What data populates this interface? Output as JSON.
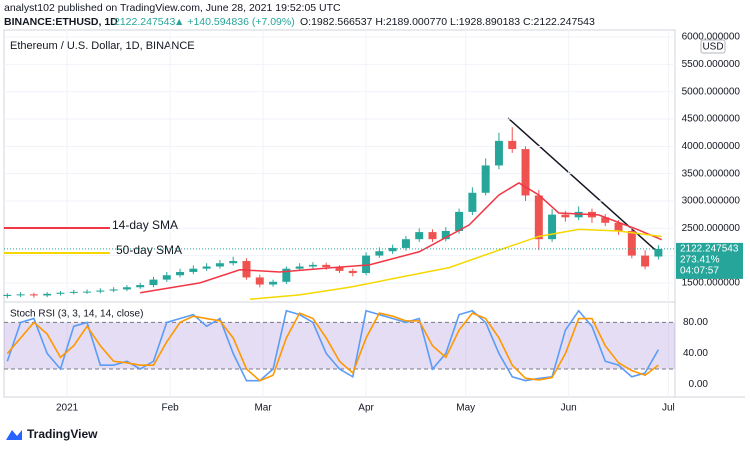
{
  "header": {
    "publisher": "analyst102 published on TradingView.com, June 28, 2021 19:52:05 UTC",
    "symbol": "BINANCE:ETHUSD, 1D",
    "price": 2122.247543,
    "change": "▲ +140.594836 (+7.09%)",
    "ohlc": "O:1982.566537 H:2189.000770 L:1928.890183 C:2122.247543"
  },
  "chart_data": [
    {
      "type": "candlestick",
      "title": "Ethereum / U.S. Dollar, 1D, BINANCE",
      "currency": "USD",
      "x": [
        1,
        5,
        9,
        13,
        17,
        21,
        25,
        29,
        33,
        37,
        41,
        45,
        49,
        53,
        57,
        61,
        65,
        69,
        73,
        77,
        81,
        85,
        89,
        93,
        97,
        101,
        105,
        109,
        113,
        117,
        121,
        125,
        129,
        133,
        137,
        141,
        145,
        149,
        153,
        157,
        161,
        165,
        169,
        173,
        177,
        181,
        185,
        189,
        193,
        197
      ],
      "open": [
        1260,
        1280,
        1290,
        1270,
        1300,
        1320,
        1335,
        1340,
        1360,
        1380,
        1420,
        1460,
        1560,
        1640,
        1700,
        1760,
        1800,
        1860,
        1900,
        1600,
        1470,
        1520,
        1760,
        1800,
        1830,
        1790,
        1720,
        1680,
        2000,
        2080,
        2140,
        2300,
        2430,
        2300,
        2450,
        2800,
        3150,
        3650,
        4100,
        3950,
        3100,
        2300,
        2750,
        2700,
        2800,
        2700,
        2600,
        2450,
        2000,
        1982.566537
      ],
      "high": [
        1310,
        1330,
        1320,
        1330,
        1350,
        1370,
        1380,
        1400,
        1420,
        1460,
        1500,
        1610,
        1700,
        1760,
        1820,
        1860,
        1920,
        1980,
        1950,
        1650,
        1560,
        1800,
        1860,
        1880,
        1870,
        1820,
        1760,
        2060,
        2150,
        2200,
        2360,
        2500,
        2480,
        2520,
        2860,
        3250,
        3780,
        4250,
        4350,
        4000,
        3200,
        2850,
        2820,
        2900,
        2860,
        2760,
        2650,
        2500,
        2100,
        2189.00077
      ],
      "low": [
        1220,
        1240,
        1230,
        1240,
        1270,
        1290,
        1300,
        1310,
        1330,
        1350,
        1390,
        1420,
        1520,
        1600,
        1660,
        1720,
        1760,
        1820,
        1560,
        1420,
        1430,
        1480,
        1720,
        1760,
        1740,
        1680,
        1620,
        1640,
        1960,
        2030,
        2090,
        2250,
        2250,
        2260,
        2400,
        2740,
        3100,
        3580,
        3880,
        3000,
        2100,
        2250,
        2620,
        2650,
        2600,
        2540,
        2380,
        1950,
        1750,
        1928.890183
      ],
      "close": [
        1280,
        1290,
        1270,
        1300,
        1320,
        1335,
        1340,
        1360,
        1380,
        1420,
        1460,
        1560,
        1640,
        1700,
        1760,
        1800,
        1860,
        1900,
        1600,
        1470,
        1520,
        1760,
        1800,
        1830,
        1790,
        1720,
        1680,
        2000,
        2080,
        2140,
        2300,
        2430,
        2300,
        2450,
        2800,
        3150,
        3650,
        4100,
        3950,
        3100,
        2300,
        2750,
        2700,
        2800,
        2700,
        2600,
        2450,
        2000,
        1800,
        2122.247543
      ],
      "colors": {
        "up": "#26a69a",
        "down": "#ef5350"
      },
      "xlim": [
        0,
        202
      ],
      "ylim": [
        1150,
        6130
      ],
      "yticks": [
        {
          "value": 1500,
          "label": "1500.000000"
        },
        {
          "value": 2000,
          "label": "2000.000000"
        },
        {
          "value": 2500,
          "label": "2500.000000"
        },
        {
          "value": 3000,
          "label": "3000.000000"
        },
        {
          "value": 3500,
          "label": "3500.000000"
        },
        {
          "value": 4000,
          "label": "4000.000000"
        },
        {
          "value": 4500,
          "label": "4500.000000"
        },
        {
          "value": 5000,
          "label": "5000.000000"
        },
        {
          "value": 5500,
          "label": "5500.000000"
        },
        {
          "value": 6000,
          "label": "6000.000000"
        }
      ],
      "overlays": [
        {
          "name": "14-day SMA",
          "color": "#f23645",
          "x": [
            41,
            59,
            71,
            83,
            98,
            110,
            125,
            140,
            149,
            155,
            161,
            167,
            179,
            191,
            198
          ],
          "values": [
            1320,
            1500,
            1740,
            1700,
            1775,
            1830,
            2070,
            2560,
            3110,
            3330,
            3110,
            2780,
            2745,
            2470,
            2290
          ]
        },
        {
          "name": "50-day SMA",
          "color": "#f5d800",
          "x": [
            74,
            89,
            104,
            119,
            134,
            149,
            161,
            173,
            185,
            198
          ],
          "values": [
            1200,
            1280,
            1420,
            1600,
            1780,
            2100,
            2350,
            2480,
            2450,
            2350
          ]
        }
      ],
      "last_price": 2122.247543,
      "change_label": "273.41%",
      "countdown": "04:07:57"
    },
    {
      "type": "line",
      "title": "Stoch RSI (3, 3, 14, 14, close)",
      "x": [
        1,
        5,
        9,
        13,
        17,
        21,
        25,
        29,
        33,
        37,
        41,
        45,
        49,
        53,
        57,
        61,
        65,
        69,
        73,
        77,
        81,
        85,
        89,
        93,
        97,
        101,
        105,
        109,
        113,
        117,
        121,
        125,
        129,
        133,
        137,
        141,
        145,
        149,
        153,
        157,
        161,
        165,
        169,
        173,
        177,
        181,
        185,
        189,
        193,
        197
      ],
      "series": [
        {
          "color": "#5b9cf6",
          "values": [
            30,
            80,
            85,
            40,
            20,
            75,
            80,
            25,
            25,
            30,
            20,
            30,
            80,
            85,
            90,
            75,
            85,
            40,
            5,
            5,
            20,
            95,
            90,
            80,
            40,
            20,
            10,
            95,
            90,
            85,
            80,
            85,
            20,
            40,
            90,
            95,
            80,
            40,
            10,
            5,
            8,
            10,
            70,
            95,
            75,
            30,
            25,
            10,
            15,
            45
          ]
        },
        {
          "color": "#ff9800",
          "values": [
            40,
            60,
            80,
            65,
            35,
            50,
            75,
            50,
            30,
            28,
            25,
            25,
            55,
            80,
            88,
            85,
            82,
            60,
            20,
            5,
            12,
            60,
            92,
            85,
            60,
            30,
            15,
            60,
            92,
            88,
            82,
            82,
            50,
            35,
            70,
            92,
            85,
            60,
            25,
            8,
            6,
            9,
            40,
            85,
            85,
            50,
            28,
            18,
            12,
            25
          ]
        }
      ],
      "band": [
        20,
        80
      ],
      "xlim": [
        0,
        202
      ],
      "ylim": [
        -16,
        105
      ],
      "yticks": [
        {
          "value": 0,
          "label": "0.00"
        },
        {
          "value": 40,
          "label": "40.00"
        },
        {
          "value": 80,
          "label": "80.00"
        }
      ],
      "xticks": [
        {
          "value": 19,
          "label": "2021"
        },
        {
          "value": 50,
          "label": "Feb"
        },
        {
          "value": 78,
          "label": "Mar"
        },
        {
          "value": 109,
          "label": "Apr"
        },
        {
          "value": 139,
          "label": "May"
        },
        {
          "value": 170,
          "label": "Jun"
        },
        {
          "value": 200,
          "label": "Jul"
        }
      ]
    }
  ],
  "footer": {
    "brand": "TradingView"
  }
}
